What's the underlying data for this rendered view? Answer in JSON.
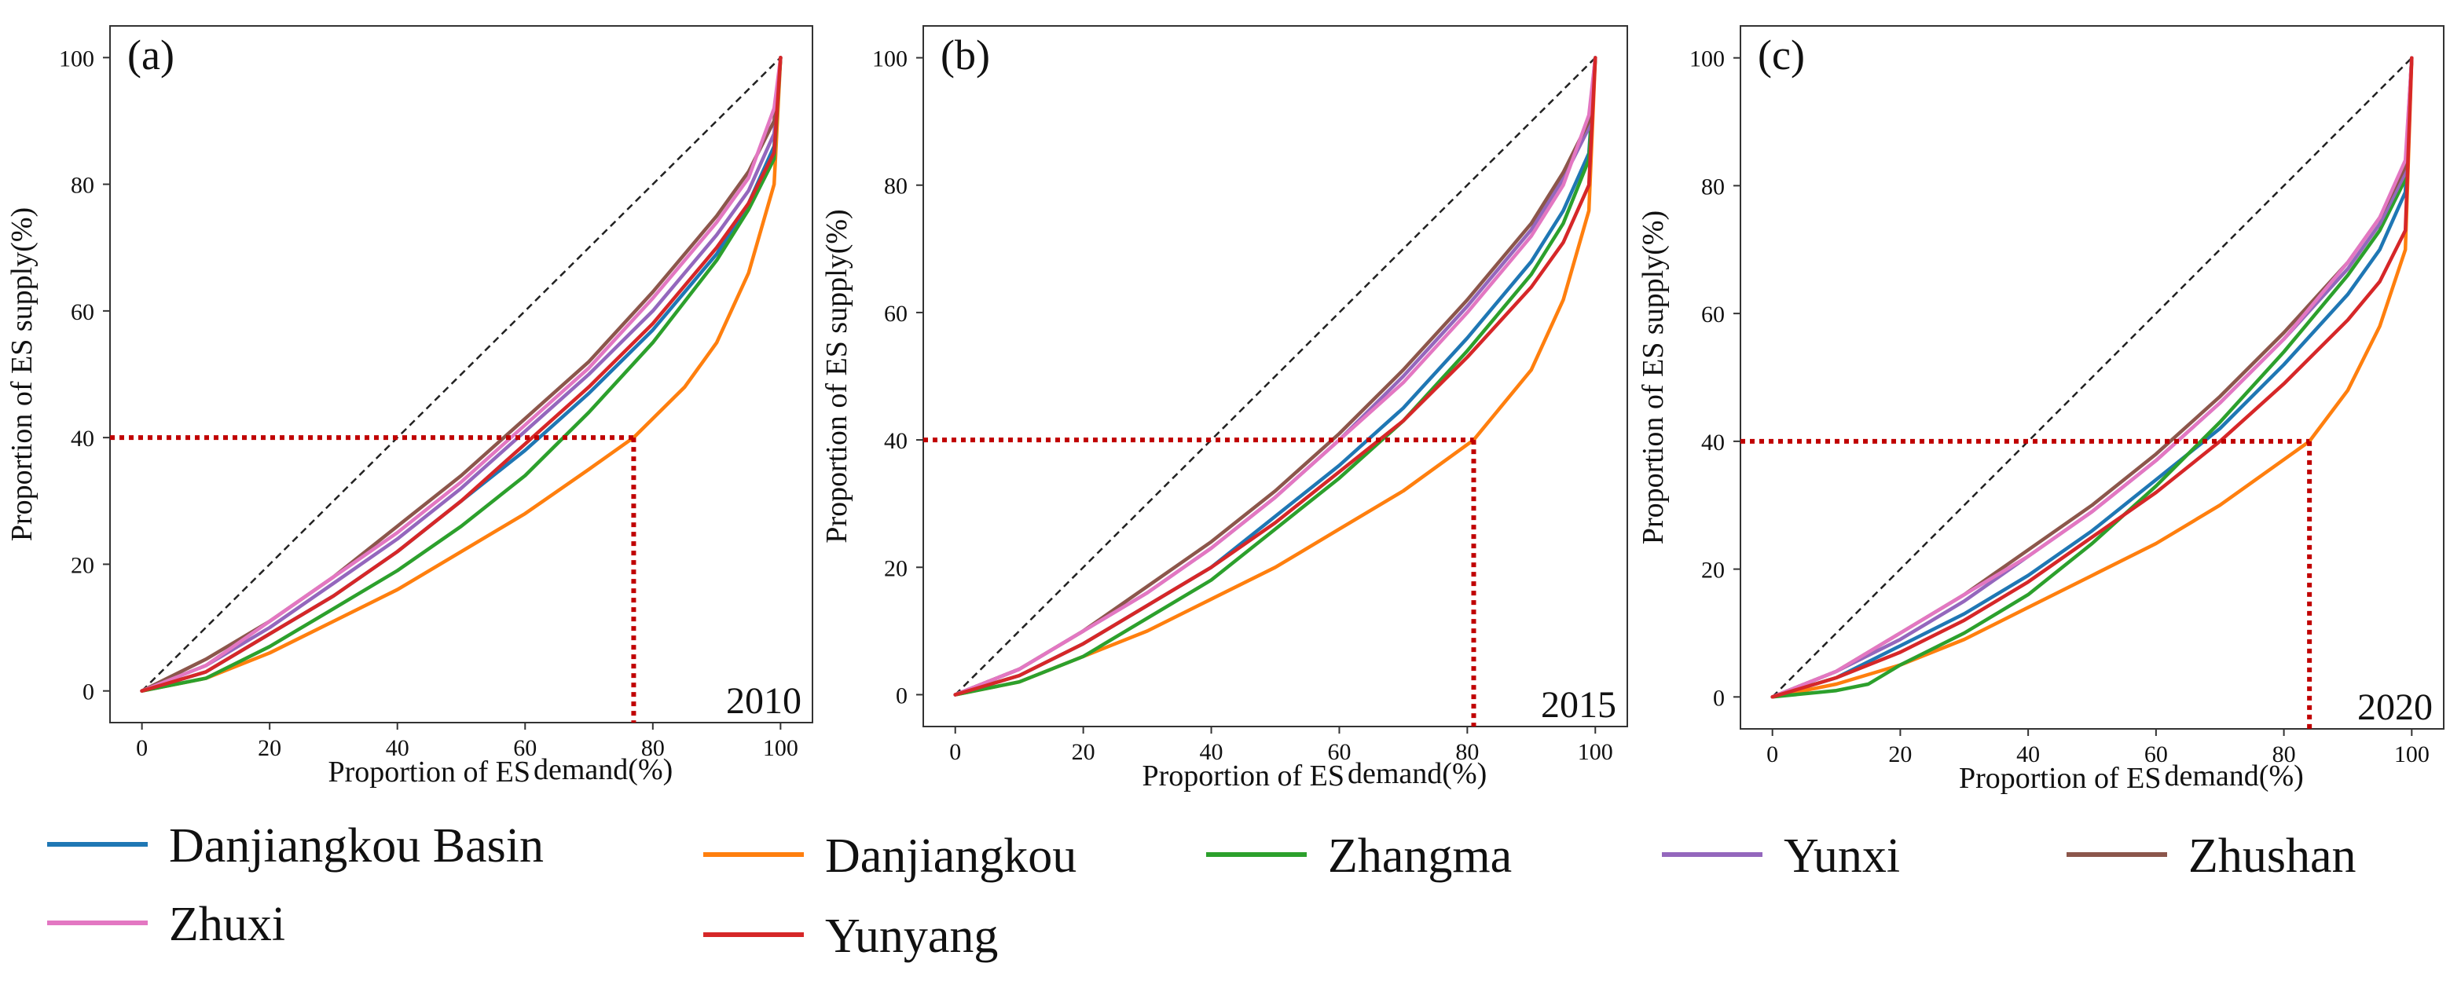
{
  "figure": {
    "legend": [
      {
        "name": "Danjiangkou Basin",
        "color": "#1f77b4"
      },
      {
        "name": "Danjiangkou",
        "color": "#ff7f0e"
      },
      {
        "name": "Zhangma",
        "color": "#2ca02c"
      },
      {
        "name": "Yunxi",
        "color": "#9467bd"
      },
      {
        "name": "Zhushan",
        "color": "#8c564b"
      },
      {
        "name": "Zhuxi",
        "color": "#e377c2"
      },
      {
        "name": "Yunyang",
        "color": "#d62728"
      }
    ]
  },
  "chart_data": [
    {
      "type": "line",
      "panel_label": "(a)",
      "year_label": "2010",
      "xlabel_prefix": "Proportion of ES",
      "xlabel_suffix": "demand(%)",
      "ylabel": "Proportion of ES supply(%)",
      "xlim": [
        -5,
        105
      ],
      "ylim": [
        -5,
        105
      ],
      "xticks": [
        "0",
        "20",
        "40",
        "60",
        "80",
        "100"
      ],
      "yticks": [
        "0",
        "20",
        "40",
        "60",
        "80",
        "100"
      ],
      "reference_line": {
        "x": [
          0,
          100
        ],
        "y": [
          0,
          100
        ],
        "style": "dashed",
        "color": "#222222"
      },
      "threshold_marker": {
        "y": 40,
        "x": 77,
        "color": "#c00000"
      },
      "series": [
        {
          "name": "Danjiangkou Basin",
          "color": "#1f77b4",
          "x": [
            0,
            10,
            20,
            30,
            40,
            50,
            60,
            70,
            80,
            90,
            95,
            99,
            100
          ],
          "y": [
            0,
            3,
            9,
            15,
            22,
            30,
            38,
            47,
            57,
            69,
            77,
            86,
            100
          ]
        },
        {
          "name": "Danjiangkou",
          "color": "#ff7f0e",
          "x": [
            0,
            10,
            20,
            30,
            40,
            50,
            60,
            70,
            77,
            85,
            90,
            95,
            99,
            100
          ],
          "y": [
            0,
            2,
            6,
            11,
            16,
            22,
            28,
            35,
            40,
            48,
            55,
            66,
            80,
            100
          ]
        },
        {
          "name": "Zhangma",
          "color": "#2ca02c",
          "x": [
            0,
            10,
            20,
            30,
            40,
            50,
            60,
            70,
            80,
            90,
            95,
            99,
            100
          ],
          "y": [
            0,
            2,
            7,
            13,
            19,
            26,
            34,
            44,
            55,
            68,
            76,
            84,
            100
          ]
        },
        {
          "name": "Yunxi",
          "color": "#9467bd",
          "x": [
            0,
            10,
            20,
            30,
            40,
            50,
            60,
            70,
            80,
            90,
            95,
            99,
            100
          ],
          "y": [
            0,
            4,
            10,
            17,
            24,
            32,
            41,
            50,
            60,
            72,
            79,
            88,
            100
          ]
        },
        {
          "name": "Zhushan",
          "color": "#8c564b",
          "x": [
            0,
            10,
            20,
            30,
            40,
            50,
            60,
            70,
            80,
            90,
            95,
            99,
            100
          ],
          "y": [
            0,
            5,
            11,
            18,
            26,
            34,
            43,
            52,
            63,
            75,
            82,
            90,
            100
          ]
        },
        {
          "name": "Zhuxi",
          "color": "#e377c2",
          "x": [
            0,
            10,
            20,
            30,
            40,
            50,
            60,
            70,
            80,
            90,
            95,
            99,
            100
          ],
          "y": [
            0,
            4,
            11,
            18,
            25,
            33,
            42,
            51,
            62,
            74,
            81,
            92,
            100
          ]
        },
        {
          "name": "Yunyang",
          "color": "#d62728",
          "x": [
            0,
            10,
            20,
            30,
            40,
            50,
            60,
            70,
            80,
            90,
            95,
            99,
            100
          ],
          "y": [
            0,
            3,
            9,
            15,
            22,
            30,
            39,
            48,
            58,
            70,
            77,
            85,
            100
          ]
        }
      ]
    },
    {
      "type": "line",
      "panel_label": "(b)",
      "year_label": "2015",
      "xlabel_prefix": "Proportion of ES",
      "xlabel_suffix": "demand(%)",
      "ylabel": "Proportion of ES supply(%)",
      "xlim": [
        -5,
        105
      ],
      "ylim": [
        -5,
        105
      ],
      "xticks": [
        "0",
        "20",
        "40",
        "60",
        "80",
        "100"
      ],
      "yticks": [
        "0",
        "20",
        "40",
        "60",
        "80",
        "100"
      ],
      "reference_line": {
        "x": [
          0,
          100
        ],
        "y": [
          0,
          100
        ],
        "style": "dashed",
        "color": "#222222"
      },
      "threshold_marker": {
        "y": 40,
        "x": 81,
        "color": "#c00000"
      },
      "series": [
        {
          "name": "Danjiangkou Basin",
          "color": "#1f77b4",
          "x": [
            0,
            10,
            20,
            30,
            40,
            50,
            60,
            70,
            80,
            90,
            95,
            99,
            100
          ],
          "y": [
            0,
            3,
            8,
            14,
            20,
            28,
            36,
            45,
            56,
            68,
            76,
            85,
            100
          ]
        },
        {
          "name": "Danjiangkou",
          "color": "#ff7f0e",
          "x": [
            0,
            10,
            20,
            30,
            40,
            50,
            60,
            70,
            81,
            90,
            95,
            99,
            100
          ],
          "y": [
            0,
            2,
            6,
            10,
            15,
            20,
            26,
            32,
            40,
            51,
            62,
            76,
            100
          ]
        },
        {
          "name": "Zhangma",
          "color": "#2ca02c",
          "x": [
            0,
            10,
            20,
            30,
            40,
            50,
            60,
            70,
            80,
            90,
            95,
            99,
            100
          ],
          "y": [
            0,
            2,
            6,
            12,
            18,
            26,
            34,
            43,
            54,
            66,
            74,
            84,
            100
          ]
        },
        {
          "name": "Yunxi",
          "color": "#9467bd",
          "x": [
            0,
            10,
            20,
            30,
            40,
            50,
            60,
            70,
            80,
            90,
            95,
            99,
            100
          ],
          "y": [
            0,
            4,
            10,
            16,
            23,
            31,
            40,
            50,
            61,
            73,
            81,
            89,
            100
          ]
        },
        {
          "name": "Zhushan",
          "color": "#8c564b",
          "x": [
            0,
            10,
            20,
            30,
            40,
            50,
            60,
            70,
            80,
            90,
            95,
            99,
            100
          ],
          "y": [
            0,
            4,
            10,
            17,
            24,
            32,
            41,
            51,
            62,
            74,
            82,
            90,
            100
          ]
        },
        {
          "name": "Zhuxi",
          "color": "#e377c2",
          "x": [
            0,
            10,
            20,
            30,
            40,
            50,
            60,
            70,
            80,
            90,
            95,
            99,
            100
          ],
          "y": [
            0,
            4,
            10,
            16,
            23,
            31,
            40,
            49,
            60,
            72,
            80,
            91,
            100
          ]
        },
        {
          "name": "Yunyang",
          "color": "#d62728",
          "x": [
            0,
            10,
            20,
            30,
            40,
            50,
            60,
            70,
            80,
            90,
            95,
            99,
            100
          ],
          "y": [
            0,
            3,
            8,
            14,
            20,
            27,
            35,
            43,
            53,
            64,
            71,
            80,
            100
          ]
        }
      ]
    },
    {
      "type": "line",
      "panel_label": "(c)",
      "year_label": "2020",
      "xlabel_prefix": "Proportion of ES",
      "xlabel_suffix": "demand(%)",
      "ylabel": "Proportion of ES supply(%)",
      "xlim": [
        -5,
        105
      ],
      "ylim": [
        -5,
        105
      ],
      "xticks": [
        "0",
        "20",
        "40",
        "60",
        "80",
        "100"
      ],
      "yticks": [
        "0",
        "20",
        "40",
        "60",
        "80",
        "100"
      ],
      "reference_line": {
        "x": [
          0,
          100
        ],
        "y": [
          0,
          100
        ],
        "style": "dashed",
        "color": "#222222"
      },
      "threshold_marker": {
        "y": 40,
        "x": 84,
        "color": "#c00000"
      },
      "series": [
        {
          "name": "Danjiangkou Basin",
          "color": "#1f77b4",
          "x": [
            0,
            10,
            20,
            30,
            40,
            50,
            60,
            70,
            80,
            90,
            95,
            99,
            100
          ],
          "y": [
            0,
            3,
            8,
            13,
            19,
            26,
            34,
            42,
            52,
            63,
            70,
            79,
            100
          ]
        },
        {
          "name": "Danjiangkou",
          "color": "#ff7f0e",
          "x": [
            0,
            10,
            20,
            30,
            40,
            50,
            60,
            70,
            84,
            90,
            95,
            99,
            100
          ],
          "y": [
            0,
            2,
            5,
            9,
            14,
            19,
            24,
            30,
            40,
            48,
            58,
            70,
            100
          ]
        },
        {
          "name": "Zhangma",
          "color": "#2ca02c",
          "x": [
            0,
            10,
            15,
            20,
            30,
            40,
            50,
            60,
            70,
            80,
            90,
            95,
            99,
            100
          ],
          "y": [
            0,
            1,
            2,
            5,
            10,
            16,
            24,
            33,
            43,
            54,
            66,
            73,
            81,
            100
          ]
        },
        {
          "name": "Yunxi",
          "color": "#9467bd",
          "x": [
            0,
            10,
            20,
            30,
            40,
            50,
            60,
            70,
            80,
            90,
            95,
            99,
            100
          ],
          "y": [
            0,
            4,
            9,
            15,
            22,
            29,
            37,
            46,
            56,
            67,
            74,
            82,
            100
          ]
        },
        {
          "name": "Zhushan",
          "color": "#8c564b",
          "x": [
            0,
            10,
            20,
            30,
            40,
            50,
            60,
            70,
            80,
            90,
            95,
            99,
            100
          ],
          "y": [
            0,
            4,
            10,
            16,
            23,
            30,
            38,
            47,
            57,
            68,
            75,
            83,
            100
          ]
        },
        {
          "name": "Zhuxi",
          "color": "#e377c2",
          "x": [
            0,
            10,
            20,
            30,
            40,
            50,
            60,
            70,
            80,
            90,
            95,
            99,
            100
          ],
          "y": [
            0,
            4,
            10,
            16,
            22,
            29,
            37,
            46,
            56,
            68,
            75,
            84,
            100
          ]
        },
        {
          "name": "Yunyang",
          "color": "#d62728",
          "x": [
            0,
            10,
            20,
            30,
            40,
            50,
            60,
            70,
            80,
            90,
            95,
            99,
            100
          ],
          "y": [
            0,
            3,
            7,
            12,
            18,
            25,
            32,
            40,
            49,
            59,
            65,
            73,
            100
          ]
        }
      ]
    }
  ]
}
